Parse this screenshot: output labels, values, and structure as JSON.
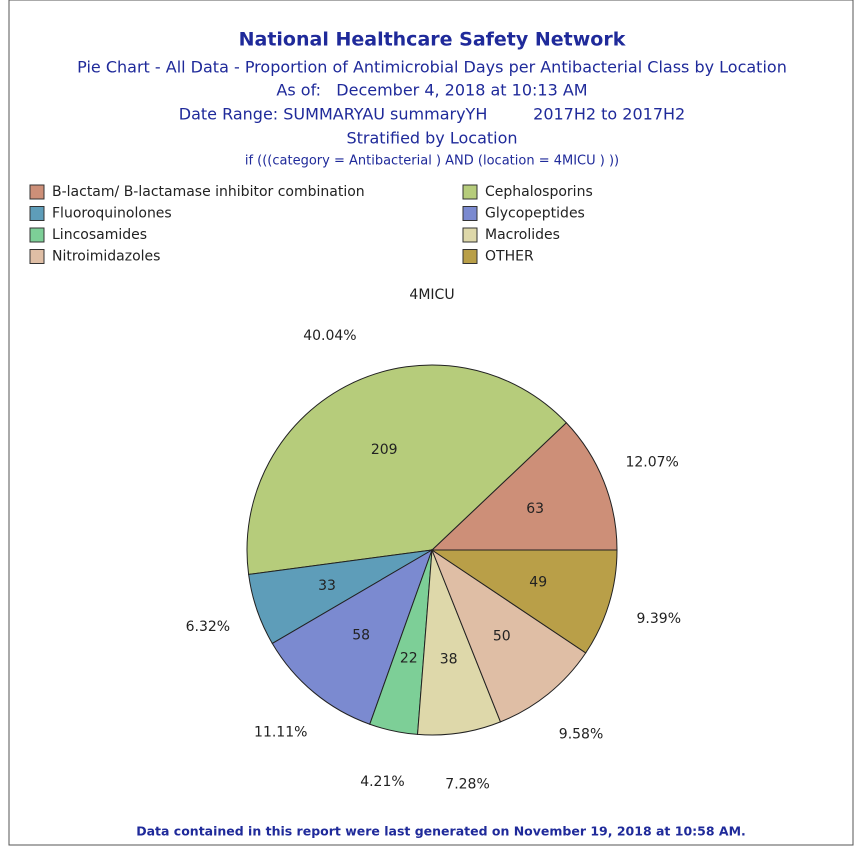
{
  "chart_data": {
    "type": "pie",
    "title": "National Healthcare Safety Network",
    "subtitle_lines": [
      "Pie Chart - All Data - Proportion of Antimicrobial Days per Antibacterial Class by Location",
      "As of:   December 4, 2018 at 10:13 AM",
      "Date Range: SUMMARYAU summaryYH         2017H2 to 2017H2",
      "Stratified by Location"
    ],
    "filter": "if (((category = Antibacterial ) AND (location = 4MICU ) ))",
    "pie_title": "4MICU",
    "categories": [
      "B-lactam/ B-lactamase inhibitor combination",
      "Cephalosporins",
      "Fluoroquinolones",
      "Glycopeptides",
      "Lincosamides",
      "Macrolides",
      "Nitroimidazoles",
      "OTHER"
    ],
    "values": [
      63,
      209,
      33,
      58,
      22,
      38,
      50,
      49
    ],
    "percent_labels": [
      "12.07%",
      "40.04%",
      "6.32%",
      "11.11%",
      "4.21%",
      "7.28%",
      "9.58%",
      "9.39%"
    ],
    "colors": [
      "#cd8f78",
      "#b6cc7b",
      "#5e9db9",
      "#7b8ad0",
      "#7dcf97",
      "#ded8aa",
      "#dfbea5",
      "#b99f48"
    ],
    "footer": "Data contained in this report were last generated on November 19, 2018 at 10:58 AM."
  }
}
